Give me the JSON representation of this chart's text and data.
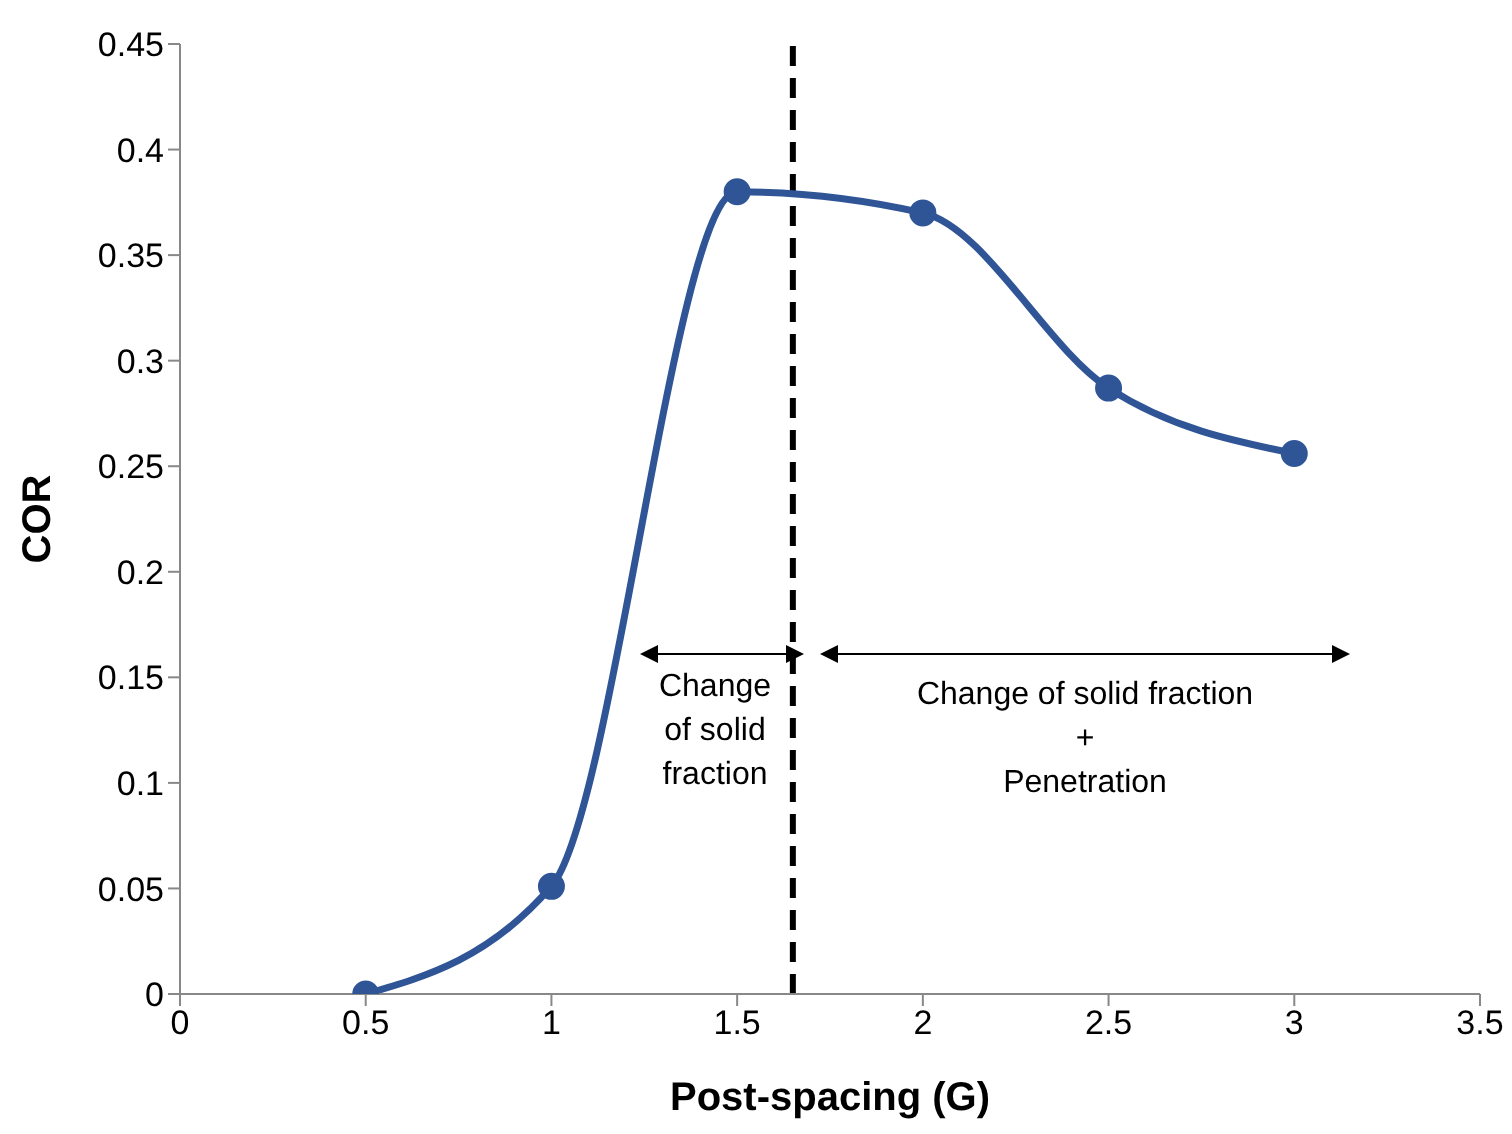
{
  "chart_data": {
    "type": "line",
    "xlabel": "Post-spacing (G)",
    "ylabel": "COR",
    "x": [
      0.5,
      1,
      1.5,
      2,
      2.5,
      3
    ],
    "series": [
      {
        "color": "#2f5597",
        "values": [
          0,
          0.051,
          0.38,
          0.37,
          0.287,
          0.256
        ]
      }
    ],
    "xlim": [
      0,
      3.5
    ],
    "xticks": [
      0,
      0.5,
      1,
      1.5,
      2,
      2.5,
      3,
      3.5
    ],
    "ylim": [
      0,
      0.45
    ],
    "yticks": [
      0,
      0.05,
      0.1,
      0.15,
      0.2,
      0.25,
      0.3,
      0.35,
      0.4,
      0.45
    ],
    "grid": false,
    "legend": false,
    "marker": "circle",
    "line_style": "solid",
    "ref_lines": [
      {
        "axis": "x",
        "value": 1.65,
        "color": "#000000",
        "line_style": "dashed"
      }
    ],
    "annotations": [
      "Change\nof solid\nfraction",
      "Change of solid fraction\n+\nPenetration"
    ]
  }
}
